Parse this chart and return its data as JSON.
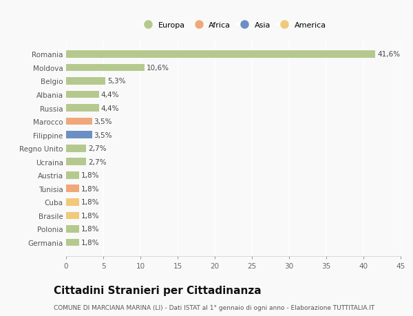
{
  "countries": [
    "Germania",
    "Polonia",
    "Brasile",
    "Cuba",
    "Tunisia",
    "Austria",
    "Ucraina",
    "Regno Unito",
    "Filippine",
    "Marocco",
    "Russia",
    "Albania",
    "Belgio",
    "Moldova",
    "Romania"
  ],
  "values": [
    1.8,
    1.8,
    1.8,
    1.8,
    1.8,
    1.8,
    2.7,
    2.7,
    3.5,
    3.5,
    4.4,
    4.4,
    5.3,
    10.6,
    41.6
  ],
  "labels": [
    "1,8%",
    "1,8%",
    "1,8%",
    "1,8%",
    "1,8%",
    "1,8%",
    "2,7%",
    "2,7%",
    "3,5%",
    "3,5%",
    "4,4%",
    "4,4%",
    "5,3%",
    "10,6%",
    "41,6%"
  ],
  "colors": [
    "#b5c98e",
    "#b5c98e",
    "#f0c97a",
    "#f0c97a",
    "#f0a87a",
    "#b5c98e",
    "#b5c98e",
    "#b5c98e",
    "#6b8fc4",
    "#f0a87a",
    "#b5c98e",
    "#b5c98e",
    "#b5c98e",
    "#b5c98e",
    "#b5c98e"
  ],
  "legend": [
    {
      "label": "Europa",
      "color": "#b5c98e"
    },
    {
      "label": "Africa",
      "color": "#f0a87a"
    },
    {
      "label": "Asia",
      "color": "#6b8fc4"
    },
    {
      "label": "America",
      "color": "#f0c97a"
    }
  ],
  "xlim": [
    0,
    45
  ],
  "xticks": [
    0,
    5,
    10,
    15,
    20,
    25,
    30,
    35,
    40,
    45
  ],
  "title": "Cittadini Stranieri per Cittadinanza",
  "subtitle": "COMUNE DI MARCIANA MARINA (LI) - Dati ISTAT al 1° gennaio di ogni anno - Elaborazione TUTTITALIA.IT",
  "bg_color": "#f9f9f9",
  "bar_height": 0.55,
  "grid_color": "#ffffff",
  "label_fontsize": 7.5,
  "tick_fontsize": 7.5,
  "ylabel_fontsize": 7.5,
  "title_fontsize": 11,
  "subtitle_fontsize": 6.5,
  "legend_fontsize": 8
}
